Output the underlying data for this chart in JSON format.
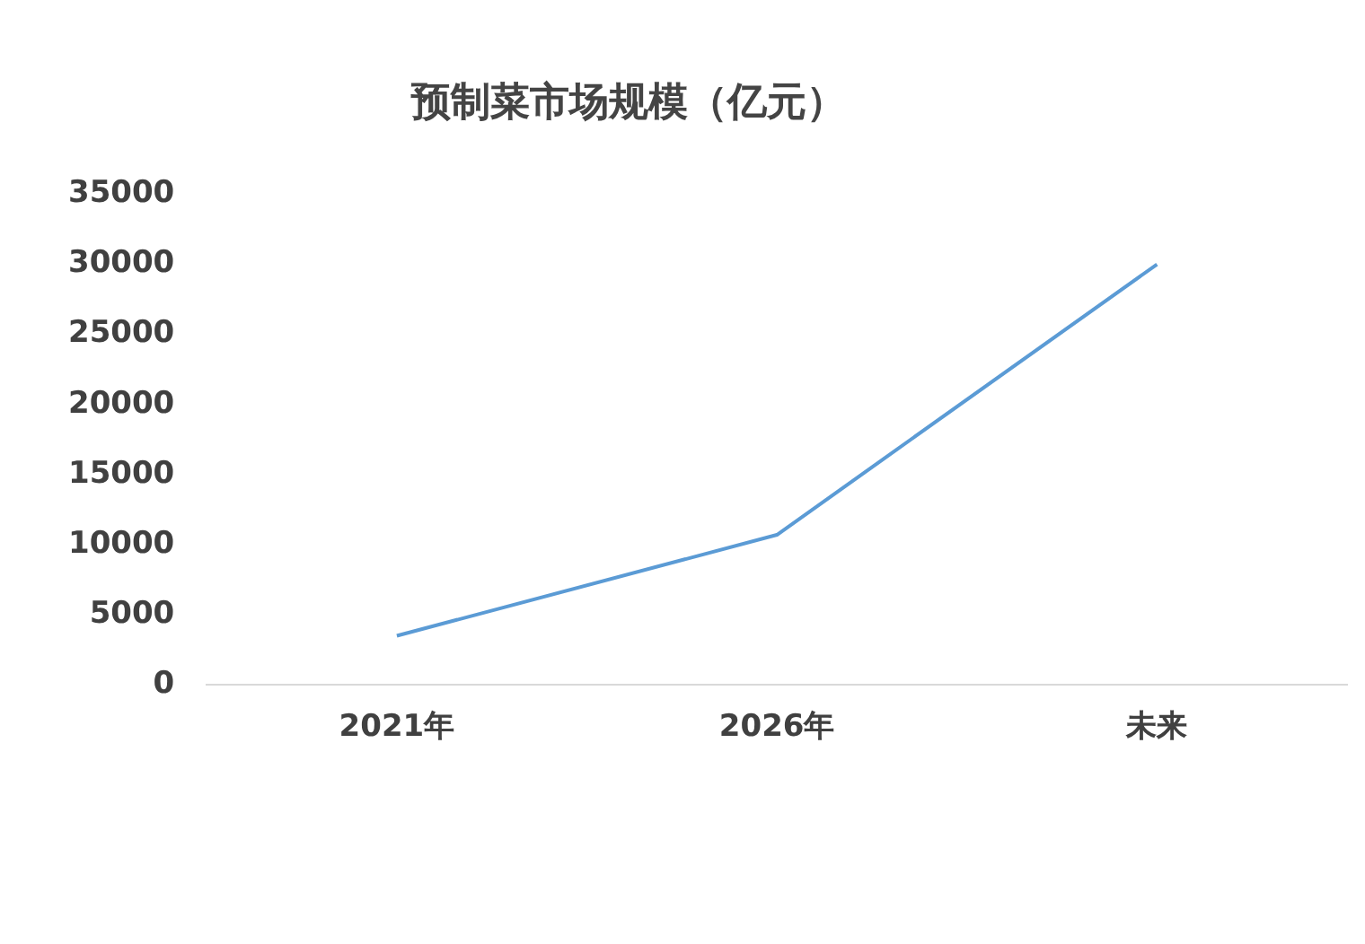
{
  "chart_data": {
    "type": "line",
    "title": "预制菜市场规模（亿元）",
    "categories": [
      "2021年",
      "2026年",
      "未来"
    ],
    "series": [
      {
        "color": "#5b9bd5",
        "values": [
          3500,
          10700,
          30000
        ]
      }
    ],
    "ylim": [
      0,
      35000
    ],
    "yticks": [
      0,
      5000,
      10000,
      15000,
      20000,
      25000,
      30000,
      35000
    ],
    "grid": false,
    "legend": false,
    "marker": "none"
  }
}
